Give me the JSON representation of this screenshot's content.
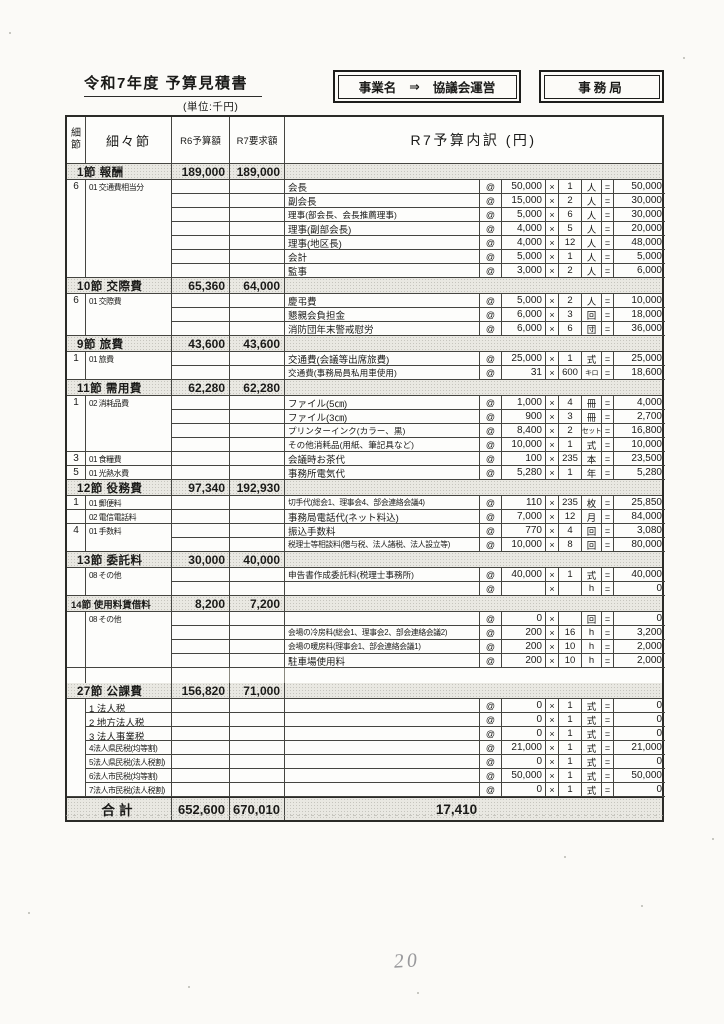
{
  "page": {
    "title": "令和7年度 予算見積書",
    "unit_note": "(単位:千円)",
    "project_box": {
      "label": "事業名",
      "arrow": "⇒",
      "value": "協議会運営"
    },
    "office_box": {
      "label": "事務局"
    },
    "page_number": "20"
  },
  "table": {
    "headers": {
      "saisetsu": "細節",
      "saisaisetsu": "細々節",
      "r6": "R6予算額",
      "r7": "R7要求額",
      "breakdown": "R7予算内訳 (円)"
    },
    "symbols": {
      "at": "@",
      "times": "×",
      "equals": "="
    },
    "sections": [
      {
        "title": "1節 報酬",
        "r6": "189,000",
        "r7": "189,000",
        "groups": [
          {
            "code": "6",
            "label": "01 交通費相当分",
            "rows": [
              {
                "desc": "会長",
                "price": "50,000",
                "qty": "1",
                "unit": "人",
                "amount": "50,000"
              },
              {
                "desc": "副会長",
                "price": "15,000",
                "qty": "2",
                "unit": "人",
                "amount": "30,000"
              },
              {
                "desc": "理事(部会長、会長推薦理事)",
                "price": "5,000",
                "qty": "6",
                "unit": "人",
                "amount": "30,000"
              },
              {
                "desc": "理事(副部会長)",
                "price": "4,000",
                "qty": "5",
                "unit": "人",
                "amount": "20,000"
              },
              {
                "desc": "理事(地区長)",
                "price": "4,000",
                "qty": "12",
                "unit": "人",
                "amount": "48,000"
              },
              {
                "desc": "会計",
                "price": "5,000",
                "qty": "1",
                "unit": "人",
                "amount": "5,000"
              },
              {
                "desc": "監事",
                "price": "3,000",
                "qty": "2",
                "unit": "人",
                "amount": "6,000"
              }
            ]
          }
        ]
      },
      {
        "title": "10節 交際費",
        "r6": "65,360",
        "r7": "64,000",
        "groups": [
          {
            "code": "6",
            "label": "01 交際費",
            "rows": [
              {
                "desc": "慶弔費",
                "price": "5,000",
                "qty": "2",
                "unit": "人",
                "amount": "10,000"
              },
              {
                "desc": "懇親会負担金",
                "price": "6,000",
                "qty": "3",
                "unit": "回",
                "amount": "18,000"
              },
              {
                "desc": "消防団年末警戒慰労",
                "price": "6,000",
                "qty": "6",
                "unit": "団",
                "amount": "36,000"
              }
            ]
          }
        ]
      },
      {
        "title": "9節 旅費",
        "r6": "43,600",
        "r7": "43,600",
        "groups": [
          {
            "code": "1",
            "label": "01 旅費",
            "rows": [
              {
                "desc": "交通費(会議等出席旅費)",
                "price": "25,000",
                "qty": "1",
                "unit": "式",
                "amount": "25,000"
              },
              {
                "desc": "交通費(事務局員私用車使用)",
                "price": "31",
                "qty": "600",
                "unit": "キロ",
                "amount": "18,600"
              }
            ]
          }
        ]
      },
      {
        "title": "11節 需用費",
        "r6": "62,280",
        "r7": "62,280",
        "groups": [
          {
            "code": "1",
            "label": "02 消耗品費",
            "rows": [
              {
                "desc": "ファイル(5㎝)",
                "price": "1,000",
                "qty": "4",
                "unit": "冊",
                "amount": "4,000"
              },
              {
                "desc": "ファイル(3㎝)",
                "price": "900",
                "qty": "3",
                "unit": "冊",
                "amount": "2,700"
              },
              {
                "desc": "プリンターインク(カラー、黒)",
                "price": "8,400",
                "qty": "2",
                "unit": "セット",
                "amount": "16,800"
              },
              {
                "desc": "その他消耗品(用紙、筆記具など)",
                "price": "10,000",
                "qty": "1",
                "unit": "式",
                "amount": "10,000"
              }
            ]
          },
          {
            "code": "3",
            "label": "01 食糧費",
            "rows": [
              {
                "desc": "会議時お茶代",
                "price": "100",
                "qty": "235",
                "unit": "本",
                "amount": "23,500"
              }
            ]
          },
          {
            "code": "5",
            "label": "01 光熱水費",
            "rows": [
              {
                "desc": "事務所電気代",
                "price": "5,280",
                "qty": "1",
                "unit": "年",
                "amount": "5,280"
              }
            ]
          }
        ]
      },
      {
        "title": "12節 役務費",
        "r6": "97,340",
        "r7": "192,930",
        "groups": [
          {
            "code": "1",
            "label": "01 郵便料",
            "rows": [
              {
                "desc": "切手代(総会1、理事会4、部会連絡会議4)",
                "price": "110",
                "qty": "235",
                "unit": "枚",
                "amount": "25,850"
              }
            ]
          },
          {
            "code": "",
            "label": "02 電信電話料",
            "rows": [
              {
                "desc": "事務局電話代(ネット料込)",
                "price": "7,000",
                "qty": "12",
                "unit": "月",
                "amount": "84,000"
              }
            ]
          },
          {
            "code": "4",
            "label": "01 手数料",
            "rows": [
              {
                "desc": "振込手数料",
                "price": "770",
                "qty": "4",
                "unit": "回",
                "amount": "3,080"
              },
              {
                "desc": "税理士等相談料(贈与税、法人諸税、法人設立等)",
                "price": "10,000",
                "qty": "8",
                "unit": "回",
                "amount": "80,000"
              }
            ]
          }
        ]
      },
      {
        "title": "13節 委託料",
        "r6": "30,000",
        "r7": "40,000",
        "groups": [
          {
            "code": "",
            "label": "08 その他",
            "rows": [
              {
                "desc": "申告書作成委託料(税理士事務所)",
                "price": "40,000",
                "qty": "1",
                "unit": "式",
                "amount": "40,000"
              },
              {
                "desc": "",
                "price": "",
                "qty": "",
                "unit": "h",
                "amount": "0"
              }
            ]
          }
        ]
      },
      {
        "title": "14節 使用料賃借料",
        "r6": "8,200",
        "r7": "7,200",
        "gap_after": true,
        "groups": [
          {
            "code": "",
            "label": "08 その他",
            "rows": [
              {
                "desc": "",
                "price": "0",
                "qty": "",
                "unit": "回",
                "amount": "0"
              },
              {
                "desc": "会場の冷房料(総会1、理事会2、部会連絡会議2)",
                "price": "200",
                "qty": "16",
                "unit": "h",
                "amount": "3,200"
              },
              {
                "desc": "会場の暖房料(理事会1、部会連絡会議1)",
                "price": "200",
                "qty": "10",
                "unit": "h",
                "amount": "2,000"
              },
              {
                "desc": "駐車場使用料",
                "price": "200",
                "qty": "10",
                "unit": "h",
                "amount": "2,000"
              }
            ]
          }
        ]
      },
      {
        "title": "27節 公課費",
        "r6": "156,820",
        "r7": "71,000",
        "merge_c1": true,
        "groups": [
          {
            "code": "",
            "label": "1 法人税",
            "rows": [
              {
                "desc": "",
                "price": "0",
                "qty": "1",
                "unit": "式",
                "amount": "0"
              }
            ]
          },
          {
            "code": "",
            "label": "2 地方法人税",
            "rows": [
              {
                "desc": "",
                "price": "0",
                "qty": "1",
                "unit": "式",
                "amount": "0"
              }
            ]
          },
          {
            "code": "",
            "label": "3 法人事業税",
            "rows": [
              {
                "desc": "",
                "price": "0",
                "qty": "1",
                "unit": "式",
                "amount": "0"
              }
            ]
          },
          {
            "code": "",
            "label": "4法人県民税(均等割)",
            "rows": [
              {
                "desc": "",
                "price": "21,000",
                "qty": "1",
                "unit": "式",
                "amount": "21,000"
              }
            ]
          },
          {
            "code": "",
            "label": "5法人県民税(法人税割)",
            "rows": [
              {
                "desc": "",
                "price": "0",
                "qty": "1",
                "unit": "式",
                "amount": "0"
              }
            ]
          },
          {
            "code": "",
            "label": "6法人市民税(均等割)",
            "rows": [
              {
                "desc": "",
                "price": "50,000",
                "qty": "1",
                "unit": "式",
                "amount": "50,000"
              }
            ]
          },
          {
            "code": "",
            "label": "7法人市民税(法人税割)",
            "rows": [
              {
                "desc": "",
                "price": "0",
                "qty": "1",
                "unit": "式",
                "amount": "0"
              }
            ]
          }
        ]
      }
    ],
    "total": {
      "label": "合計",
      "r6": "652,600",
      "r7": "670,010",
      "breakdown": "17,410"
    }
  }
}
